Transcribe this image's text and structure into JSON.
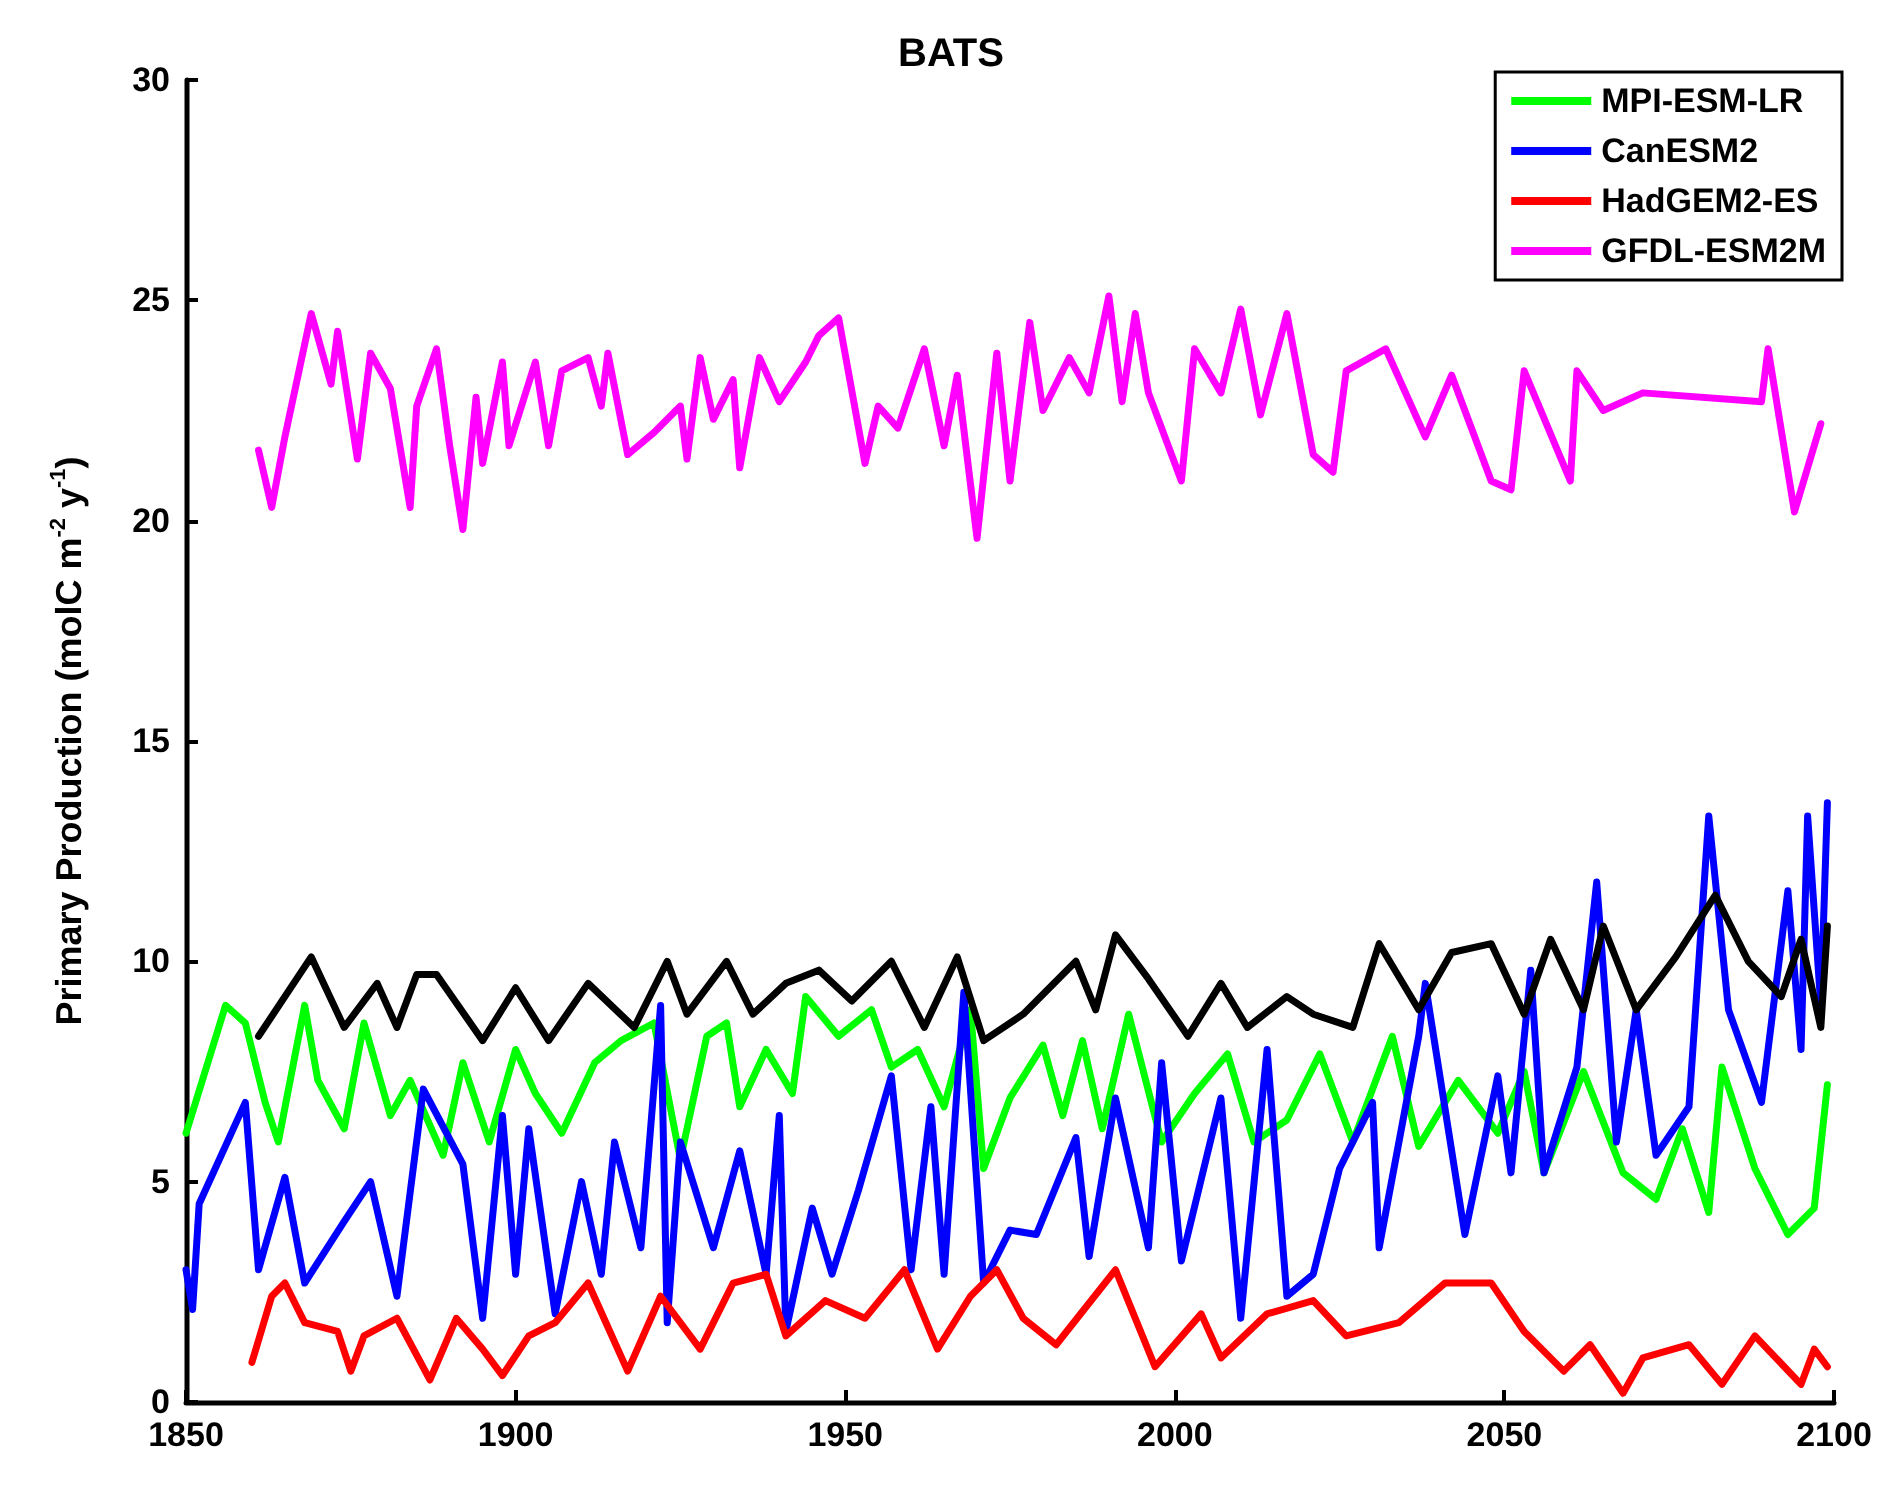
{
  "chart_data": {
    "type": "line",
    "title": "BATS",
    "ylabel": "Primary Production (molC m$^{-2}$ y$^{-1}$)",
    "xlim": [
      1850,
      2100
    ],
    "xticks": [
      1850,
      1900,
      1950,
      2000,
      2050,
      2100
    ],
    "ylim": [
      0,
      30
    ],
    "yticks": [
      0,
      5,
      10,
      15,
      20,
      25,
      30
    ],
    "grid": false,
    "legend": "top right",
    "marker": "none",
    "line_style": "solid",
    "series": [
      {
        "name": "MPI-ESM-LR",
        "color": "#00ff00",
        "x": [
          1850,
          1856,
          1859,
          1862,
          1864,
          1868,
          1870,
          1874,
          1877,
          1881,
          1884,
          1889,
          1892,
          1896,
          1900,
          1903,
          1907,
          1912,
          1916,
          1921,
          1925,
          1929,
          1932,
          1934,
          1938,
          1942,
          1944,
          1949,
          1954,
          1957,
          1961,
          1965,
          1969,
          1971,
          1975,
          1980,
          1983,
          1986,
          1989,
          1993,
          1998,
          2003,
          2008,
          2012,
          2017,
          2022,
          2027,
          2033,
          2037,
          2043,
          2049,
          2053,
          2056,
          2062,
          2068,
          2073,
          2077,
          2081,
          2083,
          2088,
          2093,
          2097,
          2099
        ],
        "values": [
          6.1,
          9.0,
          8.6,
          6.8,
          5.9,
          9.0,
          7.3,
          6.2,
          8.6,
          6.5,
          7.3,
          5.6,
          7.7,
          5.9,
          8.0,
          7.0,
          6.1,
          7.7,
          8.2,
          8.6,
          5.5,
          8.3,
          8.6,
          6.7,
          8.0,
          7.0,
          9.2,
          8.3,
          8.9,
          7.6,
          8.0,
          6.7,
          8.9,
          5.3,
          6.9,
          8.1,
          6.5,
          8.2,
          6.2,
          8.8,
          5.9,
          7.0,
          7.9,
          5.9,
          6.4,
          7.9,
          5.9,
          8.3,
          5.8,
          7.3,
          6.1,
          7.5,
          5.2,
          7.5,
          5.2,
          4.6,
          6.2,
          4.3,
          7.6,
          5.3,
          3.8,
          4.4,
          7.2
        ]
      },
      {
        "name": "CanESM2",
        "color": "#0000ff",
        "x": [
          1850,
          1851,
          1852,
          1859,
          1861,
          1865,
          1868,
          1874,
          1878,
          1882,
          1886,
          1892,
          1895,
          1898,
          1900,
          1902,
          1906,
          1910,
          1913,
          1915,
          1919,
          1922,
          1923,
          1925,
          1930,
          1934,
          1938,
          1940,
          1941,
          1945,
          1948,
          1952,
          1957,
          1960,
          1963,
          1965,
          1968,
          1971,
          1975,
          1979,
          1985,
          1987,
          1991,
          1996,
          1998,
          2001,
          2007,
          2010,
          2014,
          2017,
          2021,
          2025,
          2030,
          2031,
          2037,
          2038,
          2044,
          2049,
          2051,
          2054,
          2056,
          2061,
          2064,
          2067,
          2070,
          2073,
          2078,
          2081,
          2084,
          2089,
          2093,
          2095,
          2096,
          2098,
          2099
        ],
        "values": [
          3.0,
          2.1,
          4.5,
          6.8,
          3.0,
          5.1,
          2.7,
          4.1,
          5.0,
          2.4,
          7.1,
          5.4,
          1.9,
          6.5,
          2.9,
          6.2,
          2.0,
          5.0,
          2.9,
          5.9,
          3.5,
          9.0,
          1.8,
          5.9,
          3.5,
          5.7,
          2.9,
          6.5,
          1.6,
          4.4,
          2.9,
          4.8,
          7.4,
          3.0,
          6.7,
          2.9,
          9.3,
          2.7,
          3.9,
          3.8,
          6.0,
          3.3,
          6.9,
          3.5,
          7.7,
          3.2,
          6.9,
          1.9,
          8.0,
          2.4,
          2.9,
          5.3,
          6.8,
          3.5,
          8.3,
          9.5,
          3.8,
          7.4,
          5.2,
          9.8,
          5.2,
          7.6,
          11.8,
          5.9,
          8.9,
          5.6,
          6.7,
          13.3,
          8.9,
          6.8,
          11.6,
          8.0,
          13.3,
          9.0,
          13.6
        ]
      },
      {
        "name": "HadGEM2-ES",
        "color": "#ff0000",
        "x": [
          1860,
          1863,
          1865,
          1868,
          1873,
          1875,
          1877,
          1882,
          1887,
          1891,
          1895,
          1898,
          1902,
          1906,
          1911,
          1917,
          1922,
          1928,
          1933,
          1938,
          1941,
          1947,
          1953,
          1959,
          1964,
          1969,
          1973,
          1977,
          1982,
          1991,
          1997,
          2004,
          2007,
          2014,
          2021,
          2026,
          2034,
          2041,
          2048,
          2053,
          2059,
          2063,
          2068,
          2071,
          2078,
          2083,
          2088,
          2095,
          2097,
          2099
        ],
        "values": [
          0.9,
          2.4,
          2.7,
          1.8,
          1.6,
          0.7,
          1.5,
          1.9,
          0.5,
          1.9,
          1.2,
          0.6,
          1.5,
          1.8,
          2.7,
          0.7,
          2.4,
          1.2,
          2.7,
          2.9,
          1.5,
          2.3,
          1.9,
          3.0,
          1.2,
          2.4,
          3.0,
          1.9,
          1.3,
          3.0,
          0.8,
          2.0,
          1.0,
          2.0,
          2.3,
          1.5,
          1.8,
          2.7,
          2.7,
          1.6,
          0.7,
          1.3,
          0.2,
          1.0,
          1.3,
          0.4,
          1.5,
          0.4,
          1.2,
          0.8
        ]
      },
      {
        "name": "GFDL-ESM2M",
        "color": "#ff00ff",
        "x": [
          1861,
          1863,
          1865,
          1869,
          1872,
          1873,
          1876,
          1878,
          1881,
          1884,
          1885,
          1888,
          1890,
          1892,
          1894,
          1895,
          1898,
          1899,
          1903,
          1905,
          1907,
          1911,
          1913,
          1914,
          1917,
          1921,
          1925,
          1926,
          1928,
          1930,
          1933,
          1934,
          1937,
          1940,
          1944,
          1946,
          1949,
          1953,
          1955,
          1958,
          1962,
          1965,
          1967,
          1970,
          1973,
          1975,
          1978,
          1980,
          1984,
          1987,
          1990,
          1992,
          1994,
          1996,
          2001,
          2003,
          2007,
          2010,
          2013,
          2017,
          2021,
          2024,
          2026,
          2032,
          2038,
          2042,
          2048,
          2051,
          2053,
          2060,
          2061,
          2065,
          2071,
          2089,
          2090,
          2094,
          2096,
          2098
        ],
        "values": [
          21.6,
          20.3,
          21.9,
          24.7,
          23.1,
          24.3,
          21.4,
          23.8,
          23.0,
          20.3,
          22.6,
          23.9,
          21.7,
          19.8,
          22.8,
          21.3,
          23.6,
          21.7,
          23.6,
          21.7,
          23.4,
          23.7,
          22.6,
          23.8,
          21.5,
          22.0,
          22.6,
          21.4,
          23.7,
          22.3,
          23.2,
          21.2,
          23.7,
          22.7,
          23.6,
          24.2,
          24.6,
          21.3,
          22.6,
          22.1,
          23.9,
          21.7,
          23.3,
          19.6,
          23.8,
          20.9,
          24.5,
          22.5,
          23.7,
          22.9,
          25.1,
          22.7,
          24.7,
          22.9,
          20.9,
          23.9,
          22.9,
          24.8,
          22.4,
          24.7,
          21.5,
          21.1,
          23.4,
          23.9,
          21.9,
          23.3,
          20.9,
          20.7,
          23.4,
          20.9,
          23.4,
          22.5,
          22.9,
          22.7,
          23.9,
          20.2,
          21.2,
          22.2
        ]
      },
      {
        "color": "#000000",
        "x": [
          1861,
          1869,
          1874,
          1879,
          1882,
          1885,
          1888,
          1895,
          1900,
          1905,
          1911,
          1918,
          1923,
          1926,
          1932,
          1936,
          1941,
          1946,
          1951,
          1957,
          1962,
          1967,
          1971,
          1977,
          1985,
          1988,
          1991,
          1996,
          2002,
          2007,
          2011,
          2017,
          2021,
          2027,
          2031,
          2037,
          2042,
          2048,
          2053,
          2057,
          2062,
          2065,
          2070,
          2076,
          2082,
          2087,
          2092,
          2095,
          2098,
          2099
        ],
        "values": [
          8.3,
          10.1,
          8.5,
          9.5,
          8.5,
          9.7,
          9.7,
          8.2,
          9.4,
          8.2,
          9.5,
          8.5,
          10.0,
          8.8,
          10.0,
          8.8,
          9.5,
          9.8,
          9.1,
          10.0,
          8.5,
          10.1,
          8.2,
          8.8,
          10.0,
          8.9,
          10.6,
          9.6,
          8.3,
          9.5,
          8.5,
          9.2,
          8.8,
          8.5,
          10.4,
          8.9,
          10.2,
          10.4,
          8.8,
          10.5,
          8.9,
          10.8,
          8.9,
          10.1,
          11.5,
          10.0,
          9.2,
          10.5,
          8.5,
          10.8
        ]
      }
    ]
  }
}
